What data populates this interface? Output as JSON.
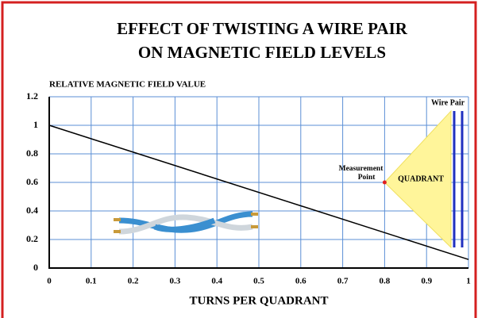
{
  "chart_data": {
    "type": "line",
    "title": [
      "EFFECT OF TWISTING A WIRE PAIR",
      "ON MAGNETIC FIELD LEVELS"
    ],
    "y_label": "RELATIVE MAGNETIC FIELD VALUE",
    "x_label": "TURNS PER QUADRANT",
    "x": [
      0,
      1
    ],
    "series": [
      {
        "color": "#000000",
        "values": [
          1,
          0.06
        ]
      }
    ],
    "xlim": [
      0,
      1
    ],
    "ylim": [
      0,
      1.2
    ],
    "xticks": [
      0,
      0.1,
      0.2,
      0.3,
      0.4,
      0.5,
      0.6,
      0.7,
      0.8,
      0.9,
      1
    ],
    "yticks": [
      0,
      0.2,
      0.4,
      0.6,
      0.8,
      1,
      1.2
    ],
    "grid": true,
    "grid_color": "#5b8fd6",
    "measurement_point": {
      "label": [
        "Measurement",
        "Point"
      ],
      "x": 0.8,
      "y": 0.6,
      "color": "#e02020"
    },
    "quadrant_label": "QUADRANT",
    "wire_pair_label": "Wire Pair"
  }
}
